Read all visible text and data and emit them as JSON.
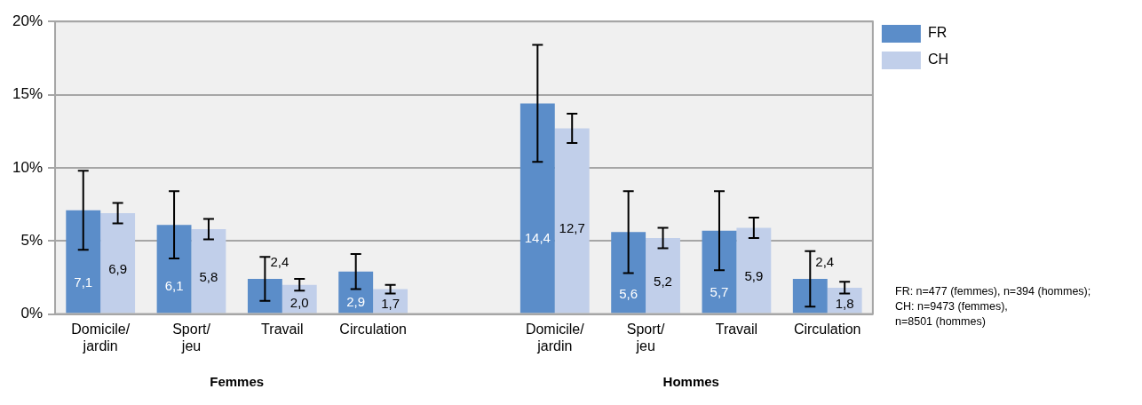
{
  "chart_data": {
    "type": "bar",
    "categories": [
      "Domicile/jardin",
      "Sport/jeu",
      "Travail",
      "Circulation",
      null,
      "Domicile/jardin",
      "Sport/jeu",
      "Travail",
      "Circulation"
    ],
    "series": [
      {
        "name": "FR",
        "color": "#5b8dc9",
        "values": [
          7.1,
          6.1,
          2.4,
          2.9,
          null,
          14.4,
          5.6,
          5.7,
          2.4
        ],
        "errors": [
          [
            4.4,
            9.8
          ],
          [
            3.8,
            8.4
          ],
          [
            0.9,
            3.9
          ],
          [
            1.7,
            4.1
          ],
          null,
          [
            10.4,
            18.4
          ],
          [
            2.8,
            8.4
          ],
          [
            3.0,
            8.4
          ],
          [
            0.5,
            4.3
          ]
        ],
        "value_labels": [
          "7,1",
          "6,1",
          "2,4",
          "2,9",
          null,
          "14,4",
          "5,6",
          "5,7",
          "2,4"
        ]
      },
      {
        "name": "CH",
        "color": "#c1cfea",
        "values": [
          6.9,
          5.8,
          2.0,
          1.7,
          null,
          12.7,
          5.2,
          5.9,
          1.8
        ],
        "errors": [
          [
            6.2,
            7.6
          ],
          [
            5.1,
            6.5
          ],
          [
            1.6,
            2.4
          ],
          [
            1.4,
            2.0
          ],
          null,
          [
            11.7,
            13.7
          ],
          [
            4.5,
            5.9
          ],
          [
            5.2,
            6.6
          ],
          [
            1.4,
            2.2
          ]
        ],
        "value_labels": [
          "6,9",
          "5,8",
          "2,0",
          "1,7",
          null,
          "12,7",
          "5,2",
          "5,9",
          "1,8"
        ]
      }
    ],
    "ylim": [
      0,
      20
    ],
    "yticks": [
      {
        "value": 0,
        "label": "0%"
      },
      {
        "value": 5,
        "label": "5%"
      },
      {
        "value": 10,
        "label": "10%"
      },
      {
        "value": 15,
        "label": "15%"
      },
      {
        "value": 20,
        "label": "20%"
      }
    ],
    "grid": "y",
    "legend": "top right",
    "annotations": [
      "Femmes",
      "Hommes",
      "FR: n=477 (femmes), n=394 (hommes);\nCH: n=9473 (femmes),\nn=8501 (hommes)"
    ]
  }
}
